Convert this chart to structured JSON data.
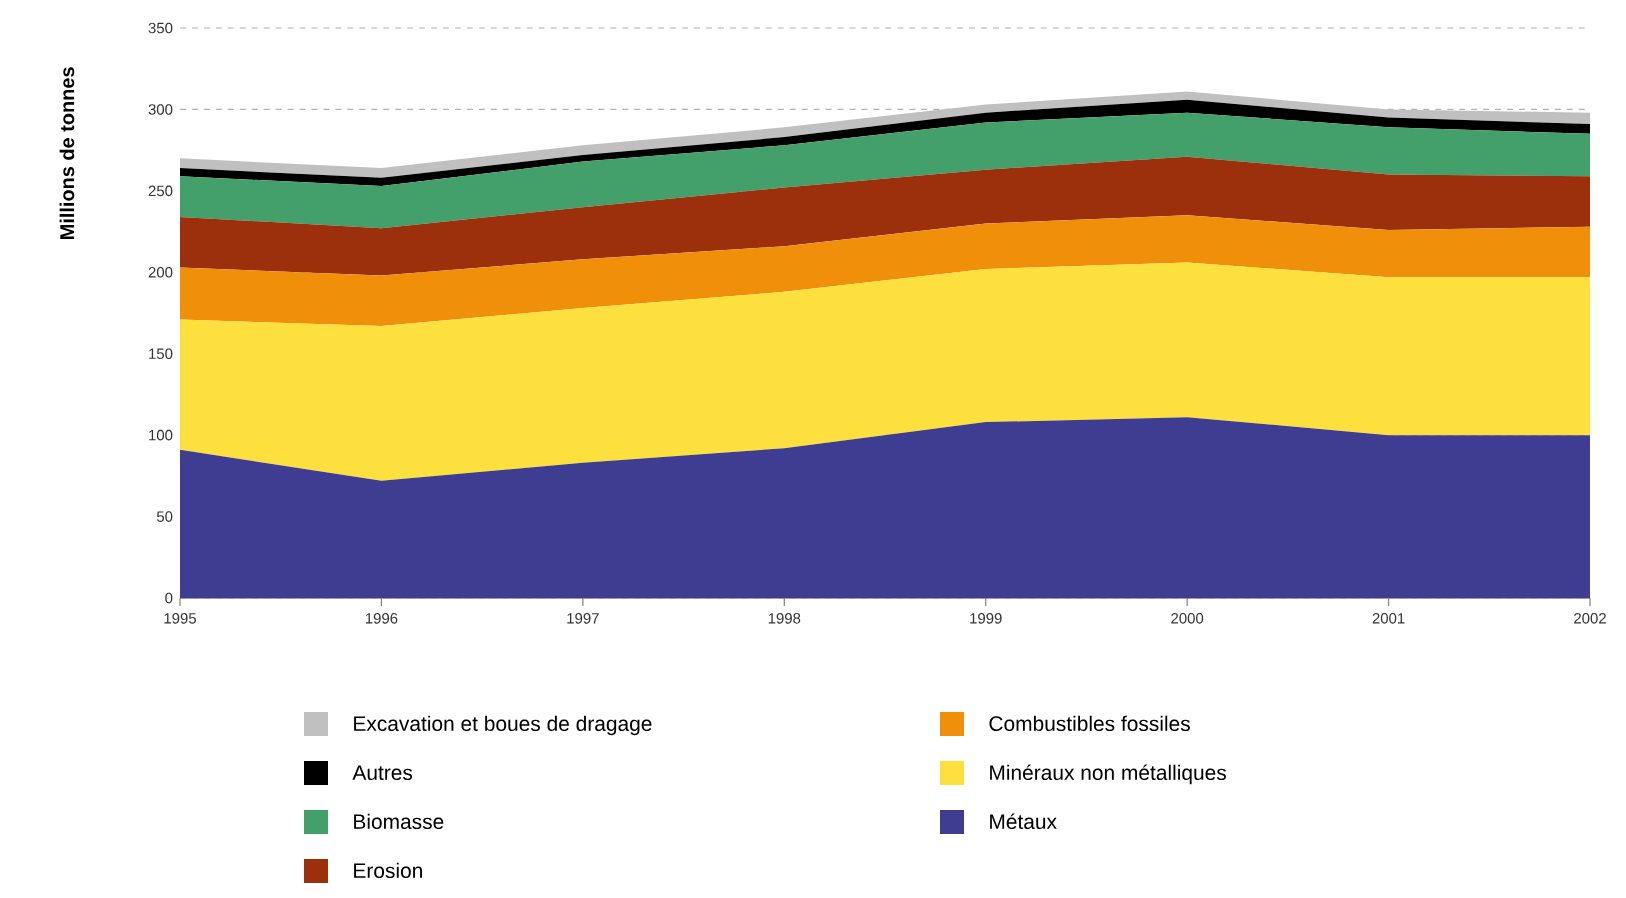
{
  "chart_data": {
    "type": "area",
    "stacked": true,
    "ylabel": "Millions de tonnes",
    "x": [
      1995,
      1996,
      1997,
      1998,
      1999,
      2000,
      2001,
      2002
    ],
    "xlim": [
      1995,
      2002
    ],
    "xticks": [
      1995,
      1996,
      1997,
      1998,
      1999,
      2000,
      2001,
      2002
    ],
    "ylim": [
      0,
      350
    ],
    "yticks": [
      0,
      50,
      100,
      150,
      200,
      250,
      300,
      350
    ],
    "grid": "y",
    "legend": "bottom",
    "series": [
      {
        "name": "Métaux",
        "color": "#3f3d91",
        "values": [
          91,
          72,
          83,
          92,
          108,
          111,
          100,
          100
        ]
      },
      {
        "name": "Minéraux non métalliques",
        "color": "#fde03e",
        "values": [
          80,
          95,
          95,
          96,
          94,
          95,
          97,
          97
        ]
      },
      {
        "name": "Combustibles fossiles",
        "color": "#f0900a",
        "values": [
          32,
          31,
          30,
          28,
          28,
          29,
          29,
          31
        ]
      },
      {
        "name": "Erosion",
        "color": "#9c300c",
        "values": [
          31,
          29,
          32,
          36,
          33,
          36,
          34,
          31
        ]
      },
      {
        "name": "Biomasse",
        "color": "#43a06a",
        "values": [
          25,
          26,
          28,
          26,
          29,
          27,
          29,
          26
        ]
      },
      {
        "name": "Autres",
        "color": "#000000",
        "values": [
          5,
          5,
          4,
          5,
          6,
          8,
          6,
          6
        ]
      },
      {
        "name": "Excavation et boues de dragage",
        "color": "#c0c0c0",
        "values": [
          6,
          6,
          6,
          6,
          5,
          5,
          5,
          7
        ]
      }
    ]
  }
}
